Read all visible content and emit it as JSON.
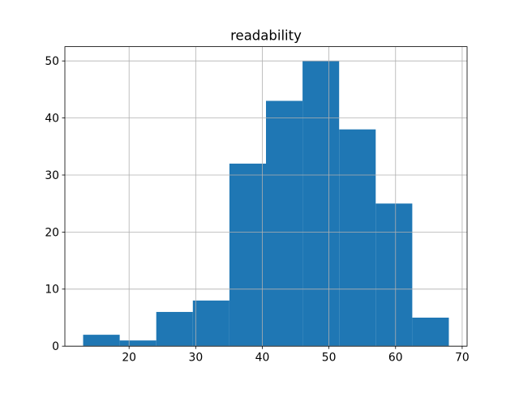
{
  "figure": {
    "background": "#ffffff"
  },
  "chart_data": {
    "type": "histogram",
    "title": "readability",
    "xlabel": "",
    "ylabel": "",
    "bin_edges": [
      13.1,
      18.59,
      24.08,
      29.57,
      35.06,
      40.55,
      46.04,
      51.53,
      57.02,
      62.51,
      68.0
    ],
    "counts": [
      2,
      1,
      6,
      8,
      32,
      43,
      50,
      38,
      25,
      5
    ],
    "xticks": [
      20,
      30,
      40,
      50,
      60,
      70
    ],
    "yticks": [
      0,
      10,
      20,
      30,
      40,
      50
    ],
    "xlim": [
      10.36,
      70.74
    ],
    "ylim": [
      0,
      52.5
    ],
    "grid": true,
    "legend": null,
    "colors": {
      "bar": "#1f77b4",
      "grid": "#b0b0b0",
      "axis": "#000000",
      "background": "#ffffff"
    }
  }
}
